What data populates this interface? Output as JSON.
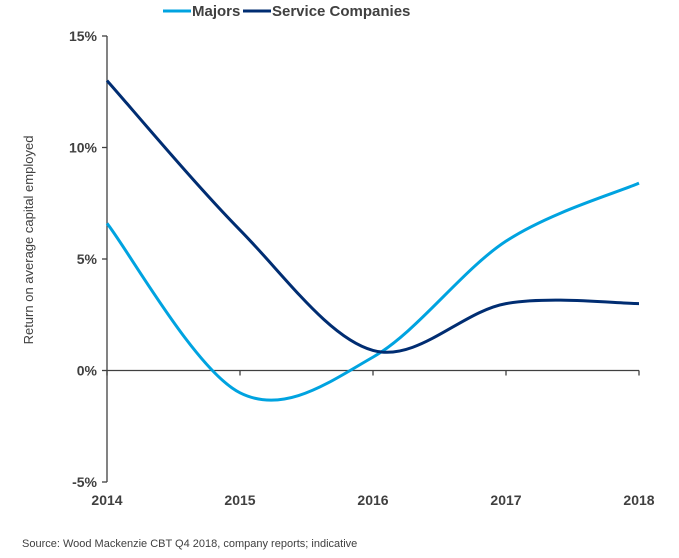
{
  "chart_data": {
    "type": "line",
    "title": "",
    "xlabel": "",
    "ylabel": "Return on average capital employed",
    "x": [
      2014,
      2015,
      2016,
      2017,
      2018
    ],
    "x_tick_labels": [
      "2014",
      "2015",
      "2016",
      "2017",
      "2018"
    ],
    "ylim": [
      -5,
      15
    ],
    "y_ticks": [
      -5,
      0,
      5,
      10,
      15
    ],
    "y_tick_labels": [
      "-5%",
      "0%",
      "5%",
      "10%",
      "15%"
    ],
    "smoothed": true,
    "grid": false,
    "legend_position": "top",
    "series": [
      {
        "name": "Majors",
        "color": "#00a3e0",
        "values": [
          6.6,
          -1.0,
          0.6,
          5.8,
          8.4
        ]
      },
      {
        "name": "Service Companies",
        "color": "#002d72",
        "values": [
          13.0,
          6.3,
          0.9,
          3.0,
          3.0
        ]
      }
    ]
  },
  "source": "Source: Wood Mackenzie CBT Q4 2018, company reports; indicative"
}
